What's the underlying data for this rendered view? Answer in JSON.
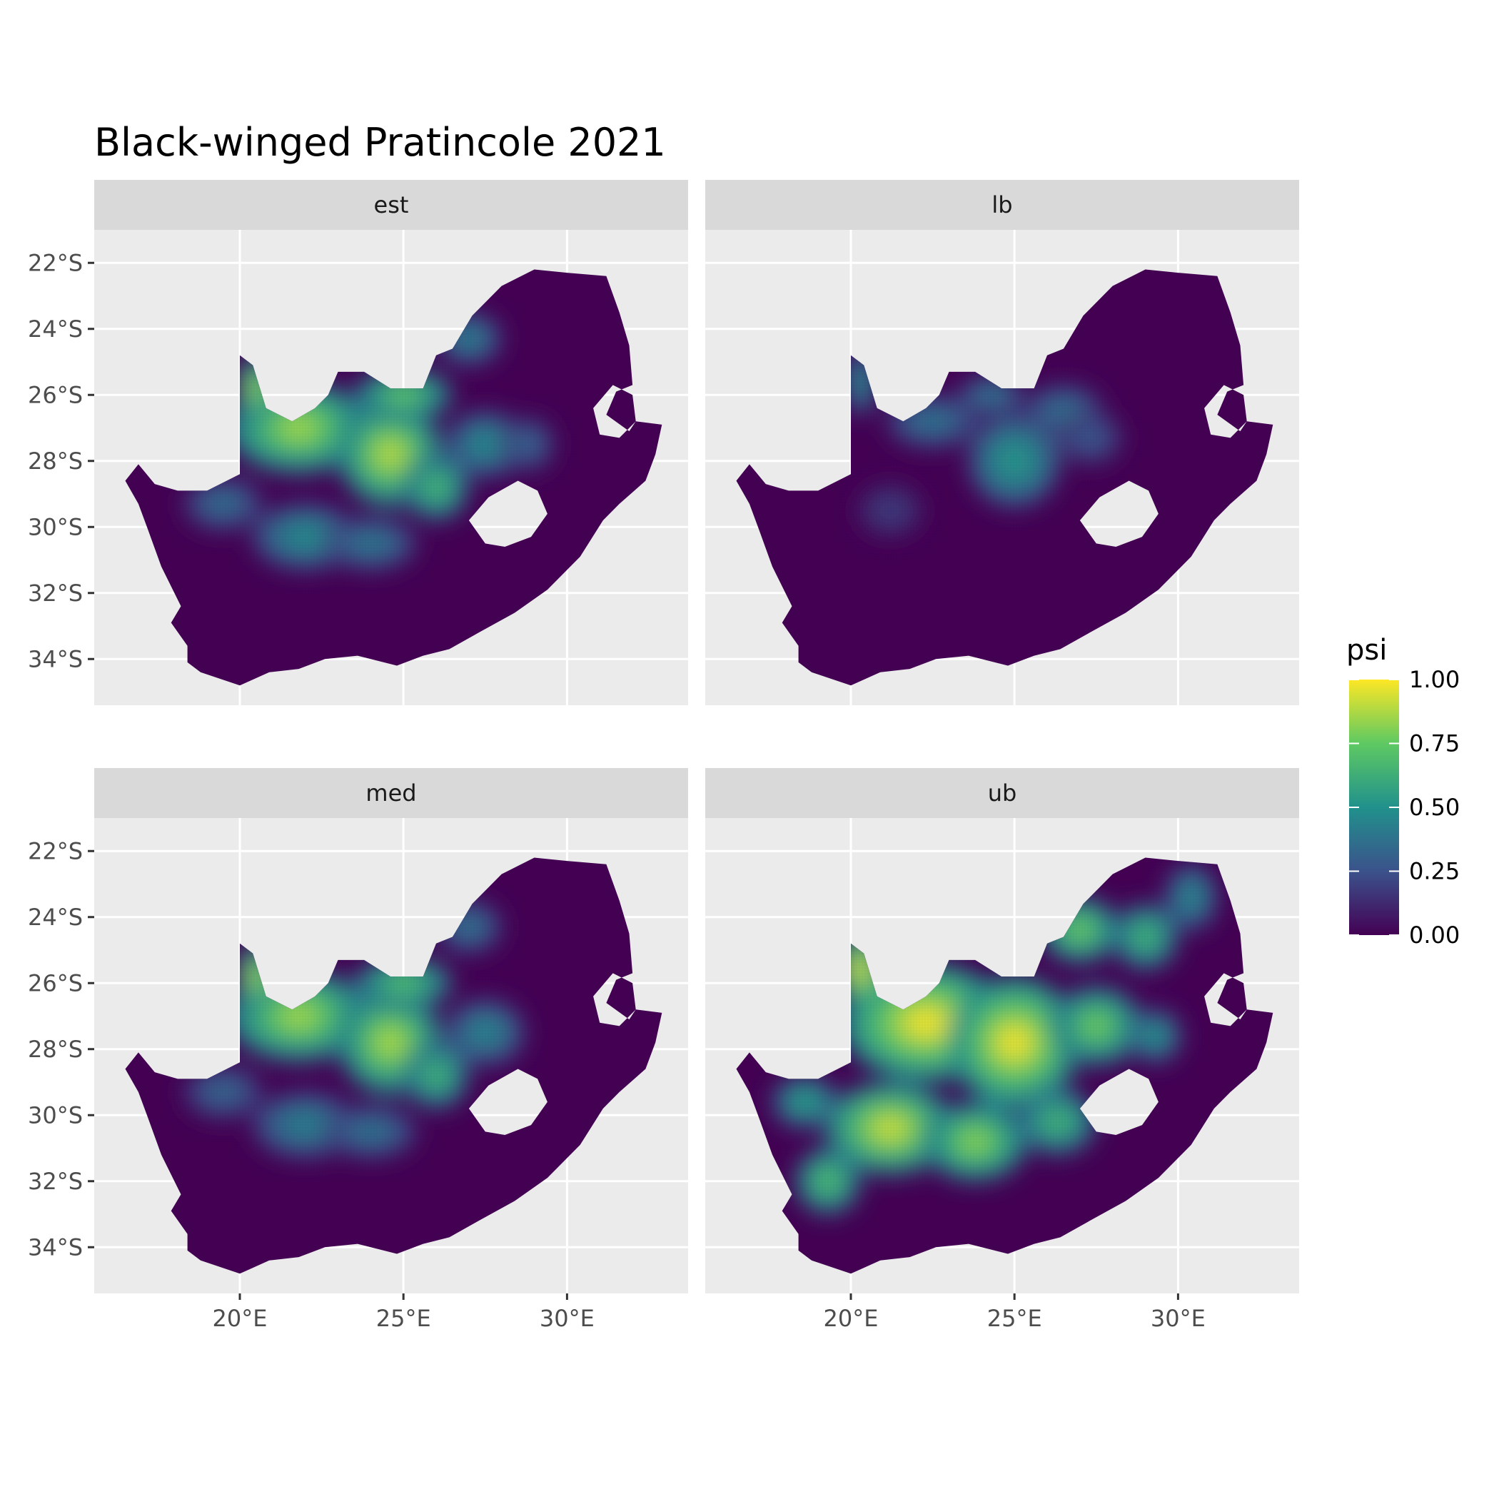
{
  "figure": {
    "title": "Black-winged Pratincole 2021"
  },
  "facets": [
    {
      "id": "est",
      "label": "est"
    },
    {
      "id": "lb",
      "label": "lb"
    },
    {
      "id": "med",
      "label": "med"
    },
    {
      "id": "ub",
      "label": "ub"
    }
  ],
  "axes": {
    "x_ticks": [
      {
        "value": 20,
        "label": "20°E"
      },
      {
        "value": 25,
        "label": "25°E"
      },
      {
        "value": 30,
        "label": "30°E"
      }
    ],
    "y_ticks": [
      {
        "value": -22,
        "label": "22°S"
      },
      {
        "value": -24,
        "label": "24°S"
      },
      {
        "value": -26,
        "label": "26°S"
      },
      {
        "value": -28,
        "label": "28°S"
      },
      {
        "value": -30,
        "label": "30°S"
      },
      {
        "value": -32,
        "label": "32°S"
      },
      {
        "value": -34,
        "label": "34°S"
      }
    ],
    "x_range": [
      15.55,
      33.7
    ],
    "y_range": [
      -35.4,
      -21.0
    ]
  },
  "legend": {
    "title": "psi",
    "colormap": "viridis",
    "range": [
      0,
      1
    ],
    "breaks": [
      {
        "value": 1.0,
        "label": "1.00"
      },
      {
        "value": 0.75,
        "label": "0.75"
      },
      {
        "value": 0.5,
        "label": "0.50"
      },
      {
        "value": 0.25,
        "label": "0.25"
      },
      {
        "value": 0.0,
        "label": "0.00"
      }
    ],
    "stops": [
      "#440154",
      "#3b528b",
      "#21918c",
      "#5ec962",
      "#fde725"
    ]
  },
  "colors": {
    "panel_background": "#ebebeb",
    "strip_background": "#d9d9d9",
    "grid": "#ffffff",
    "low_value": "#440154"
  }
}
